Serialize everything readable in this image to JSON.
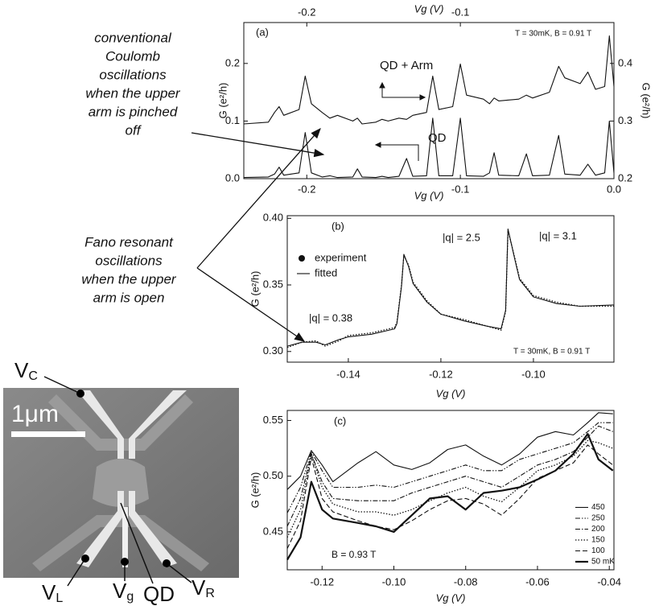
{
  "notes": {
    "pinched": [
      "conventional",
      "Coulomb",
      "oscillations",
      "when the upper",
      "arm is pinched",
      "off"
    ],
    "open": [
      "Fano resonant",
      "oscillations",
      "when the upper",
      "arm is open"
    ]
  },
  "image": {
    "scale_bar": "1μm",
    "labels": [
      {
        "symbol": "V",
        "subscript": "C"
      },
      {
        "symbol": "V",
        "subscript": "L"
      },
      {
        "symbol": "V",
        "subscript": "g"
      },
      {
        "text": "QD"
      },
      {
        "symbol": "V",
        "subscript": "R"
      }
    ]
  },
  "chart_data": [
    {
      "type": "line",
      "panel_label": "(a)",
      "annotations": [
        "T = 30mK, B = 0.91 T",
        "QD + Arm",
        "QD"
      ],
      "xlabel": "Vg (V)",
      "x2label": "Vg (V)",
      "ylabel": "G (e²/h)",
      "y2label": "G (e²/h)",
      "xlim": [
        -0.241,
        0
      ],
      "xticks": [
        -0.2,
        -0.1,
        {
          "value": 0,
          "label": "0.0"
        }
      ],
      "x2ticks": [
        -0.2,
        -0.1
      ],
      "ylim": [
        0,
        0.271
      ],
      "yticks": [
        {
          "value": 0,
          "label": "0.0"
        },
        0.1,
        0.2
      ],
      "y2lim": [
        0.2,
        0.471
      ],
      "y2ticks": [
        0.2,
        0.3,
        0.4
      ],
      "x": [
        -0.241,
        -0.225,
        -0.221,
        -0.218,
        -0.215,
        -0.205,
        -0.201,
        -0.197,
        -0.19,
        -0.185,
        -0.18,
        -0.17,
        -0.167,
        -0.164,
        -0.155,
        -0.151,
        -0.147,
        -0.14,
        -0.135,
        -0.131,
        -0.122,
        -0.118,
        -0.114,
        -0.105,
        -0.1,
        -0.096,
        -0.085,
        -0.081,
        -0.078,
        -0.075,
        -0.062,
        -0.057,
        -0.053,
        -0.042,
        -0.036,
        -0.032,
        -0.022,
        -0.017,
        -0.012,
        -0.006,
        -0.003,
        0
      ],
      "series": [
        {
          "name": "QD",
          "color": "#111111",
          "style": "solid",
          "values": [
            0.002,
            0.003,
            0.008,
            0.02,
            0.006,
            0.01,
            0.08,
            0.01,
            0.003,
            0.005,
            0.002,
            0.003,
            0.017,
            0.003,
            0.002,
            0.004,
            0.002,
            0.004,
            0.035,
            0.004,
            0.005,
            0.105,
            0.005,
            0.005,
            0.105,
            0.005,
            0.004,
            0.01,
            0.045,
            0.006,
            0.005,
            0.043,
            0.005,
            0.006,
            0.075,
            0.008,
            0.006,
            0.025,
            0.006,
            0.01,
            0.1,
            0.01
          ]
        },
        {
          "name": "QD + Arm",
          "color": "#111111",
          "style": "solid",
          "axis": "y2",
          "values": [
            0.295,
            0.298,
            0.315,
            0.325,
            0.31,
            0.32,
            0.378,
            0.33,
            0.315,
            0.305,
            0.31,
            0.3,
            0.305,
            0.295,
            0.298,
            0.303,
            0.3,
            0.305,
            0.303,
            0.31,
            0.315,
            0.378,
            0.32,
            0.325,
            0.399,
            0.345,
            0.338,
            0.33,
            0.34,
            0.335,
            0.338,
            0.345,
            0.34,
            0.35,
            0.395,
            0.375,
            0.365,
            0.385,
            0.355,
            0.36,
            0.448,
            0.36
          ]
        }
      ]
    },
    {
      "type": "line",
      "panel_label": "(b)",
      "annotations": [
        "|q| = 0.38",
        "|q| = 2.5",
        "|q| = 3.1",
        "T = 30mK, B = 0.91 T"
      ],
      "xlabel": "Vg (V)",
      "ylabel": "G (e²/h)",
      "xlim": [
        -0.1532,
        -0.0826
      ],
      "xticks": [
        -0.14,
        -0.12,
        {
          "value": -0.1,
          "label": "-0.10"
        }
      ],
      "ylim": [
        0.292,
        0.402
      ],
      "yticks": [
        {
          "value": 0.3,
          "label": "0.30"
        },
        0.35,
        {
          "value": 0.4,
          "label": "0.40"
        }
      ],
      "legend": "upper left",
      "x": [
        -0.1532,
        -0.15,
        -0.147,
        -0.145,
        -0.142,
        -0.14,
        -0.135,
        -0.13,
        -0.1295,
        -0.1285,
        -0.128,
        -0.127,
        -0.126,
        -0.123,
        -0.12,
        -0.115,
        -0.11,
        -0.107,
        -0.106,
        -0.1055,
        -0.104,
        -0.103,
        -0.1,
        -0.095,
        -0.09,
        -0.0826
      ],
      "series": [
        {
          "name": "experiment",
          "color": "#111111",
          "style": "dotted",
          "values": [
            0.303,
            0.307,
            0.308,
            0.304,
            0.308,
            0.312,
            0.314,
            0.318,
            0.322,
            0.35,
            0.372,
            0.365,
            0.352,
            0.338,
            0.328,
            0.324,
            0.319,
            0.316,
            0.33,
            0.391,
            0.37,
            0.355,
            0.342,
            0.337,
            0.334,
            0.334
          ]
        },
        {
          "name": "fitted",
          "color": "#111111",
          "style": "solid",
          "values": [
            0.304,
            0.307,
            0.307,
            0.305,
            0.309,
            0.311,
            0.313,
            0.317,
            0.321,
            0.349,
            0.373,
            0.364,
            0.351,
            0.337,
            0.328,
            0.323,
            0.319,
            0.317,
            0.331,
            0.392,
            0.369,
            0.354,
            0.341,
            0.336,
            0.334,
            0.335
          ]
        }
      ]
    },
    {
      "type": "line",
      "panel_label": "(c)",
      "annotations": [
        "B = 0.93 T"
      ],
      "xlabel": "Vg (V)",
      "ylabel": "G (e²/h)",
      "xlim": [
        -0.1297,
        -0.0387
      ],
      "xticks": [
        -0.12,
        {
          "value": -0.1,
          "label": "-0.10"
        },
        -0.08,
        -0.06,
        -0.04
      ],
      "ylim": [
        0.416,
        0.559
      ],
      "yticks": [
        0.45,
        {
          "value": 0.5,
          "label": "0.50"
        },
        0.55
      ],
      "legend": "lower right",
      "x": [
        -0.1297,
        -0.126,
        -0.123,
        -0.12,
        -0.117,
        -0.11,
        -0.105,
        -0.1,
        -0.095,
        -0.09,
        -0.085,
        -0.08,
        -0.075,
        -0.07,
        -0.065,
        -0.06,
        -0.055,
        -0.05,
        -0.046,
        -0.043,
        -0.039
      ],
      "series": [
        {
          "name": "450",
          "color": "#111111",
          "style": "solid",
          "values": [
            0.488,
            0.5,
            0.523,
            0.51,
            0.495,
            0.512,
            0.522,
            0.51,
            0.506,
            0.512,
            0.524,
            0.528,
            0.518,
            0.51,
            0.52,
            0.535,
            0.54,
            0.537,
            0.548,
            0.557,
            0.556
          ]
        },
        {
          "name": "250",
          "color": "#111111",
          "style": "dash-dot-dot",
          "values": [
            0.467,
            0.49,
            0.522,
            0.505,
            0.49,
            0.49,
            0.492,
            0.49,
            0.495,
            0.5,
            0.505,
            0.51,
            0.505,
            0.505,
            0.515,
            0.52,
            0.525,
            0.53,
            0.54,
            0.548,
            0.548
          ]
        },
        {
          "name": "200",
          "color": "#111111",
          "style": "dash-dot",
          "values": [
            0.455,
            0.48,
            0.52,
            0.495,
            0.48,
            0.478,
            0.478,
            0.478,
            0.485,
            0.49,
            0.495,
            0.5,
            0.495,
            0.49,
            0.5,
            0.51,
            0.515,
            0.522,
            0.535,
            0.545,
            0.54
          ]
        },
        {
          "name": "150",
          "color": "#111111",
          "style": "dotted",
          "values": [
            0.445,
            0.47,
            0.52,
            0.49,
            0.475,
            0.468,
            0.468,
            0.465,
            0.47,
            0.478,
            0.485,
            0.49,
            0.482,
            0.477,
            0.49,
            0.505,
            0.51,
            0.518,
            0.532,
            0.53,
            0.525
          ]
        },
        {
          "name": "100",
          "color": "#111111",
          "style": "dashed",
          "values": [
            0.435,
            0.46,
            0.517,
            0.48,
            0.468,
            0.46,
            0.455,
            0.452,
            0.46,
            0.47,
            0.478,
            0.48,
            0.475,
            0.465,
            0.48,
            0.498,
            0.505,
            0.512,
            0.528,
            0.52,
            0.51
          ]
        },
        {
          "name": "50 mK",
          "color": "#111111",
          "style": "bold",
          "values": [
            0.425,
            0.445,
            0.495,
            0.47,
            0.462,
            0.458,
            0.455,
            0.45,
            0.465,
            0.48,
            0.482,
            0.47,
            0.485,
            0.487,
            0.49,
            0.497,
            0.505,
            0.52,
            0.538,
            0.515,
            0.505
          ]
        }
      ]
    }
  ]
}
